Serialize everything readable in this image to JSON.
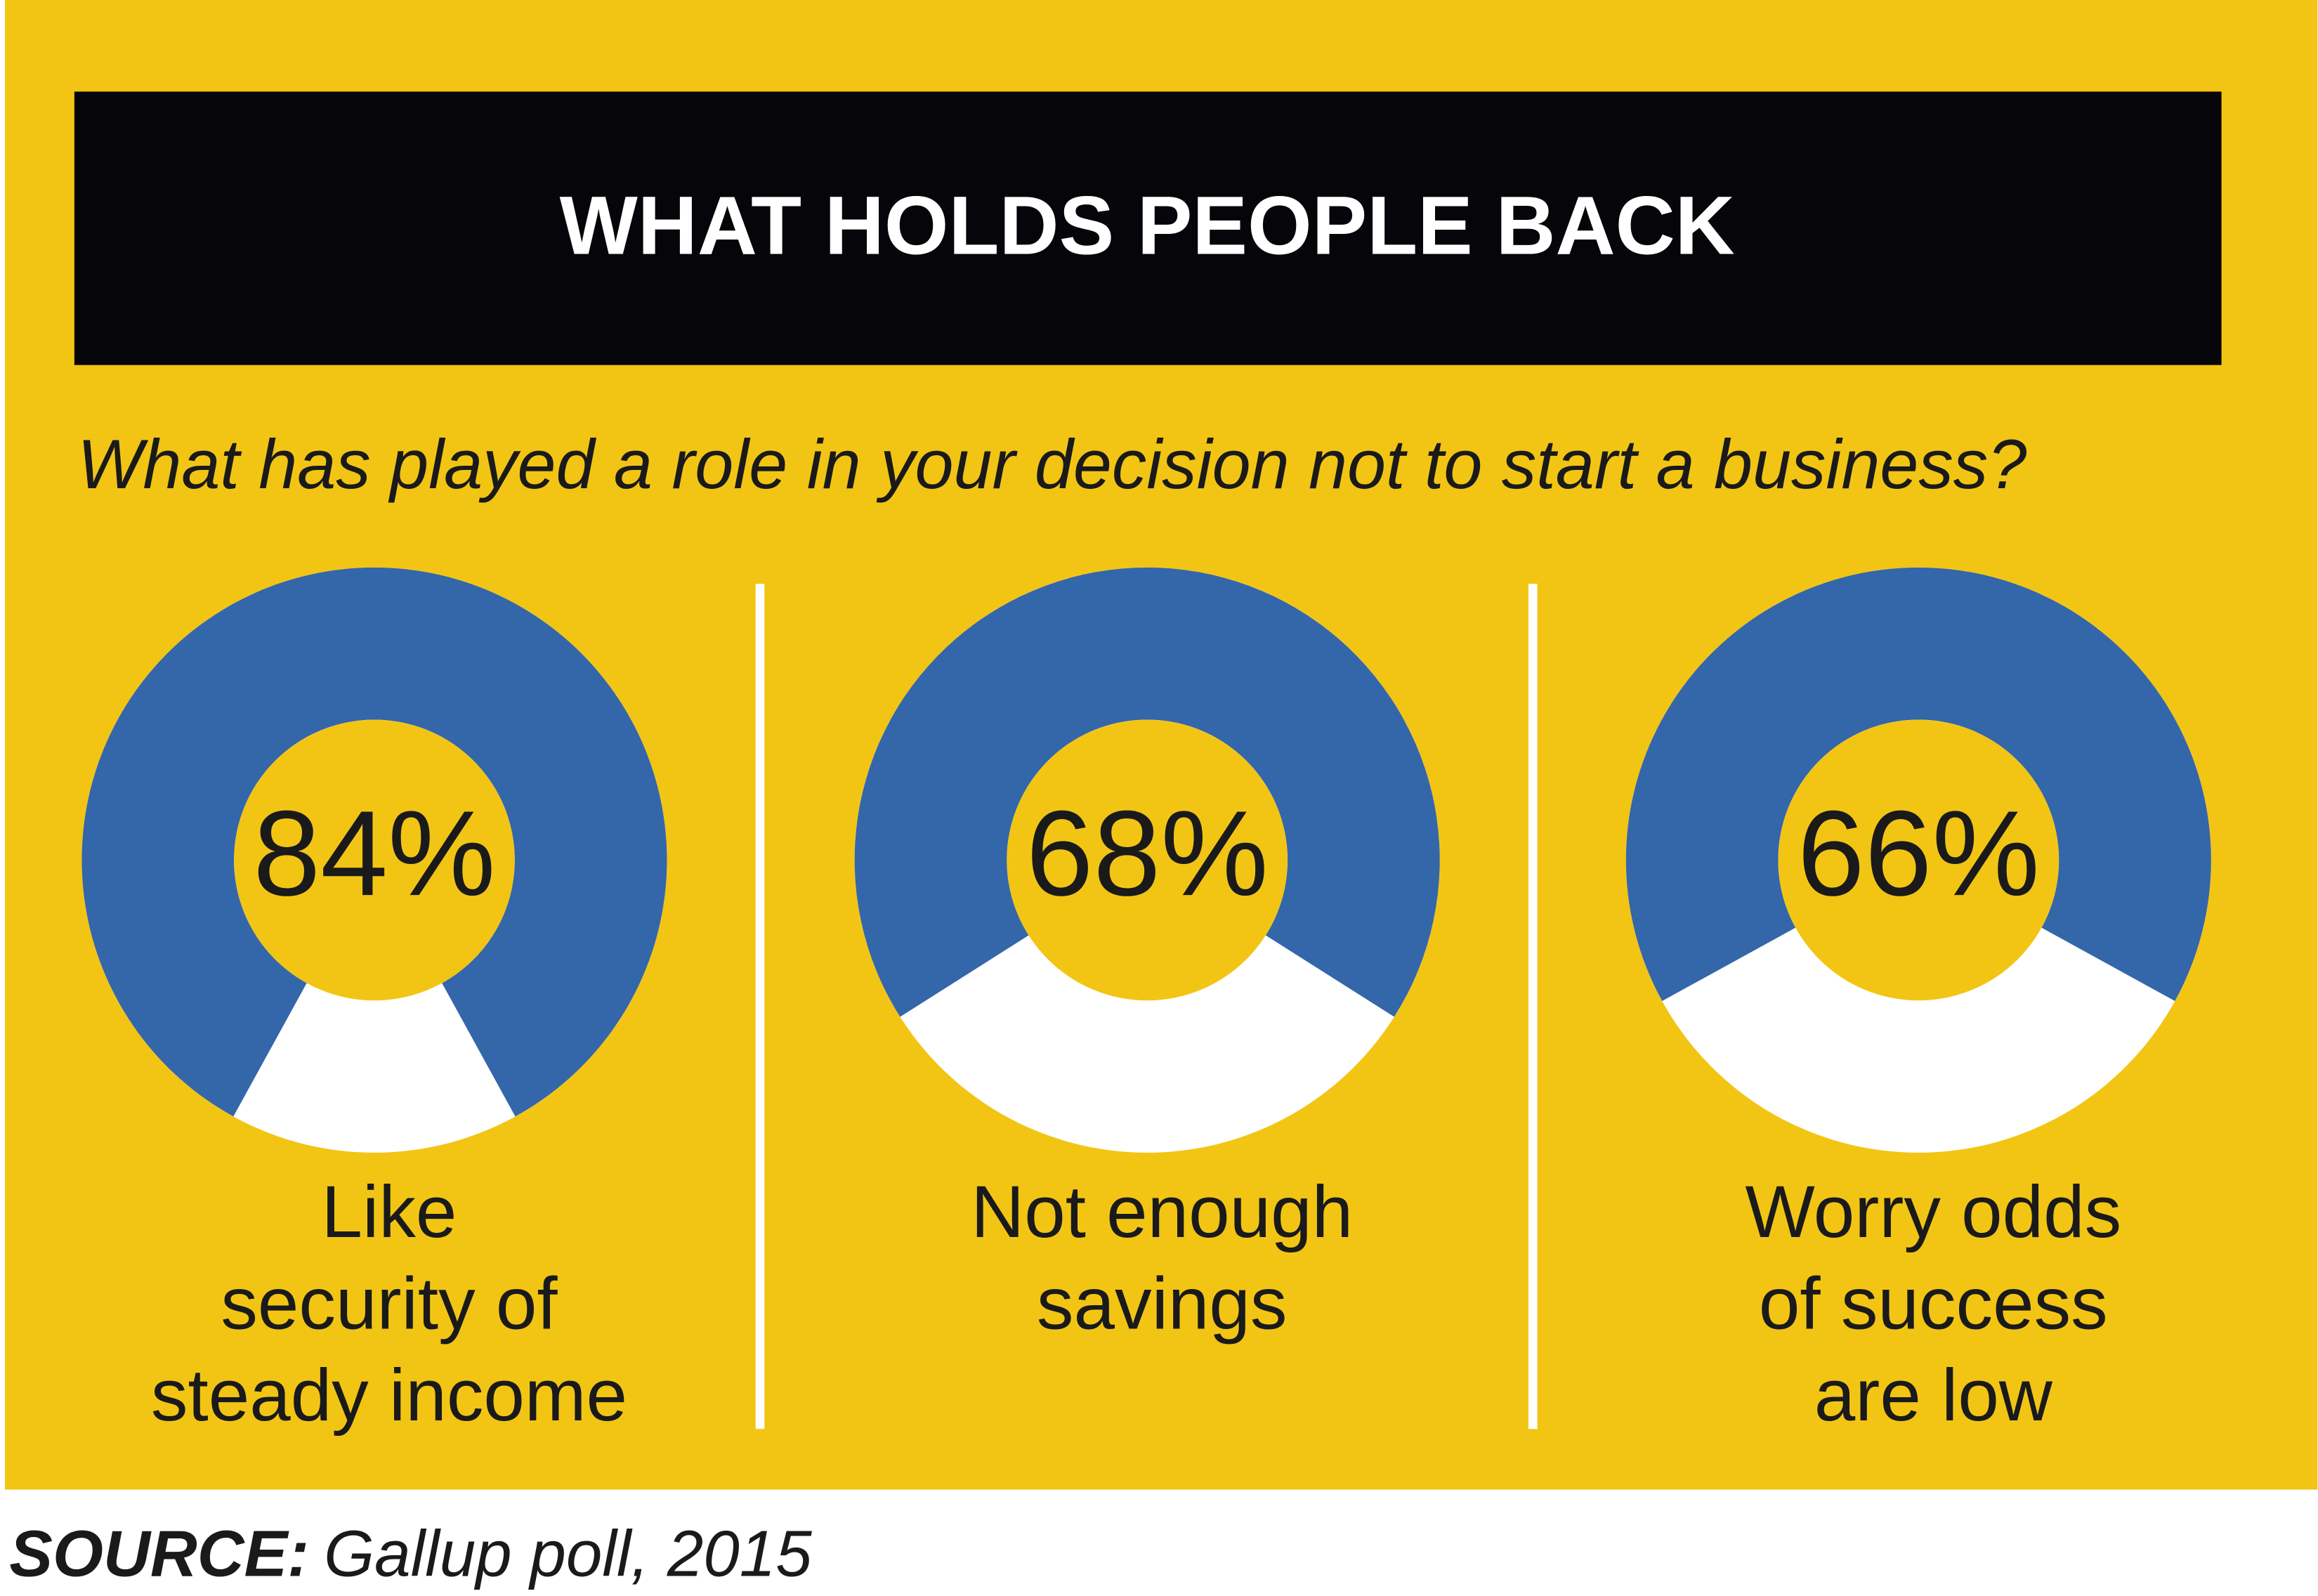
{
  "title": "WHAT HOLDS PEOPLE BACK",
  "subtitle": "What has played a role in your decision not to start a business?",
  "source_label": "SOURCE:",
  "source": "Gallup poll, 2015",
  "chart_data": [
    {
      "type": "donut",
      "values": [
        84
      ],
      "value_labels": [
        "84%"
      ],
      "label_lines": [
        "Like",
        "security of",
        "steady income"
      ],
      "color": "#3466aa",
      "rest_color": "#ffffff"
    },
    {
      "type": "donut",
      "values": [
        68
      ],
      "value_labels": [
        "68%"
      ],
      "label_lines": [
        "Not enough",
        "savings"
      ],
      "color": "#3466aa",
      "rest_color": "#ffffff"
    },
    {
      "type": "donut",
      "values": [
        66
      ],
      "value_labels": [
        "66%"
      ],
      "label_lines": [
        "Worry odds",
        "of success",
        "are low"
      ],
      "color": "#3466aa",
      "rest_color": "#ffffff"
    }
  ]
}
